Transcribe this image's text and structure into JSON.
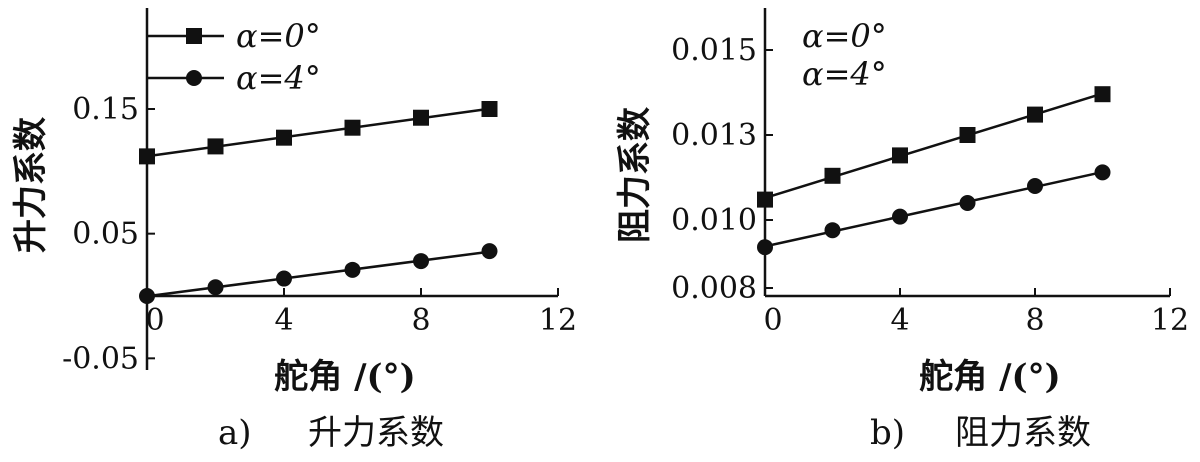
{
  "chart_data": [
    {
      "type": "line",
      "panel_label": "a)",
      "caption": "升力系数",
      "xlabel": "舵角 /(°)",
      "ylabel": "升力系数",
      "xlim": [
        0,
        12
      ],
      "ylim": [
        -0.05,
        0.2
      ],
      "x_ticks": [
        "0",
        "4",
        "8",
        "12"
      ],
      "x_tick_values": [
        0,
        4,
        8,
        12
      ],
      "y_ticks": [
        "-0.05",
        "0.05",
        "0.15"
      ],
      "y_tick_values": [
        -0.05,
        0.05,
        0.15
      ],
      "x_axis_at_y": 0,
      "legend": {
        "placement": "top-left"
      },
      "series": [
        {
          "name": "α=0°",
          "marker": "square",
          "x": [
            0,
            2,
            4,
            6,
            8,
            10
          ],
          "y": [
            0.112,
            0.12,
            0.127,
            0.135,
            0.143,
            0.15
          ]
        },
        {
          "name": "α=4°",
          "marker": "circle",
          "x": [
            0,
            2,
            4,
            6,
            8,
            10
          ],
          "y": [
            0.0,
            0.007,
            0.014,
            0.021,
            0.028,
            0.036
          ]
        }
      ]
    },
    {
      "type": "line",
      "panel_label": "b)",
      "caption": "阻力系数",
      "xlabel": "舵角 /(°)",
      "ylabel": "阻力系数",
      "xlim": [
        0,
        12
      ],
      "ylim": [
        0.007,
        0.016
      ],
      "x_ticks": [
        "0",
        "4",
        "8",
        "12"
      ],
      "x_tick_values": [
        0,
        4,
        8,
        12
      ],
      "y_ticks": [
        "0.008",
        "0.010",
        "0.013",
        "0.015"
      ],
      "y_tick_values": [
        0.008,
        0.01,
        0.0125,
        0.015
      ],
      "x_axis_at_y": 0.007,
      "legend": {
        "placement": "top-left"
      },
      "series": [
        {
          "name": "α=0°",
          "marker": "square",
          "x": [
            0,
            2,
            4,
            6,
            8,
            10
          ],
          "y": [
            0.0106,
            0.0113,
            0.0119,
            0.0125,
            0.0131,
            0.0137
          ]
        },
        {
          "name": "α=4°",
          "marker": "circle",
          "x": [
            0,
            2,
            4,
            6,
            8,
            10
          ],
          "y": [
            0.0092,
            0.0097,
            0.0101,
            0.0105,
            0.011,
            0.0114
          ]
        }
      ]
    }
  ]
}
